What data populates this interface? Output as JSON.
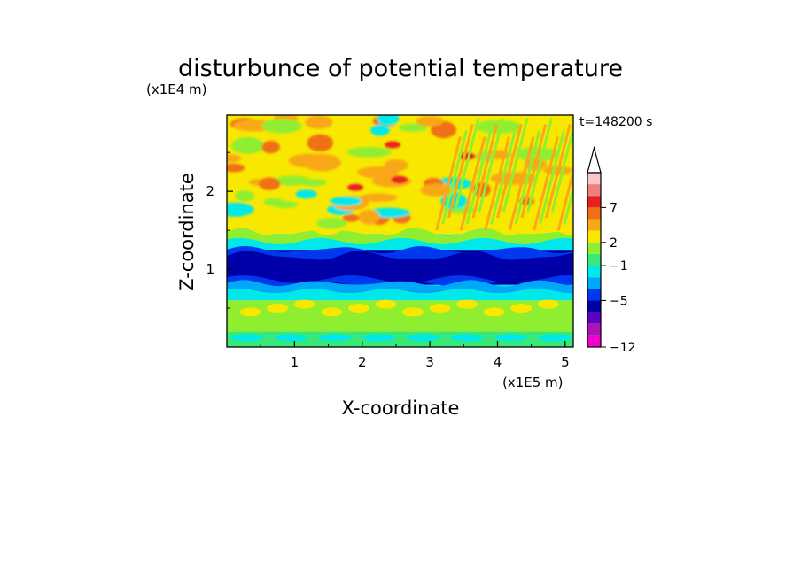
{
  "chart_data": {
    "type": "heatmap",
    "title": "disturbunce of potential temperature",
    "xlabel": "X-coordinate",
    "ylabel": "Z-coordinate",
    "x_unit": "(x1E5 m)",
    "y_unit": "(x1E4 m)",
    "time_label": "t=148200 s",
    "xlim": [
      0,
      5.12
    ],
    "ylim": [
      0,
      2.98
    ],
    "x_ticks": [
      "1",
      "2",
      "3",
      "4",
      "5"
    ],
    "y_ticks": [
      "1",
      "2"
    ],
    "colorbar": {
      "tick_labels": [
        "7",
        "2",
        "−1",
        "−5",
        "−12"
      ],
      "colors_top_to_bottom": [
        "#f8c8c8",
        "#f08080",
        "#e82020",
        "#f07018",
        "#f8a818",
        "#f8e800",
        "#90ee30",
        "#38e878",
        "#00e8e8",
        "#00a8f8",
        "#0038f0",
        "#0000a8",
        "#6000c0",
        "#b010b8",
        "#f000c8"
      ],
      "extend_top": true
    },
    "bands": [
      {
        "z_range": [
          0.0,
          0.2
        ],
        "description": "green / cyan / yellow near surface",
        "dominant_color": "#38e878"
      },
      {
        "z_range": [
          0.2,
          0.6
        ],
        "description": "yellow lenses on green",
        "dominant_color": "#90ee30"
      },
      {
        "z_range": [
          0.6,
          0.8
        ],
        "description": "cyan / light-blue layer",
        "dominant_color": "#00e8e8"
      },
      {
        "z_range": [
          0.8,
          1.25
        ],
        "description": "strong negative layer",
        "dominant_color": "#0000a8"
      },
      {
        "z_range": [
          1.25,
          1.45
        ],
        "description": "cyan / green transition",
        "dominant_color": "#00e8e8"
      },
      {
        "z_range": [
          1.45,
          2.98
        ],
        "description": "positive wave field with orange/red maxima",
        "dominant_color": "#f8e800"
      }
    ]
  }
}
